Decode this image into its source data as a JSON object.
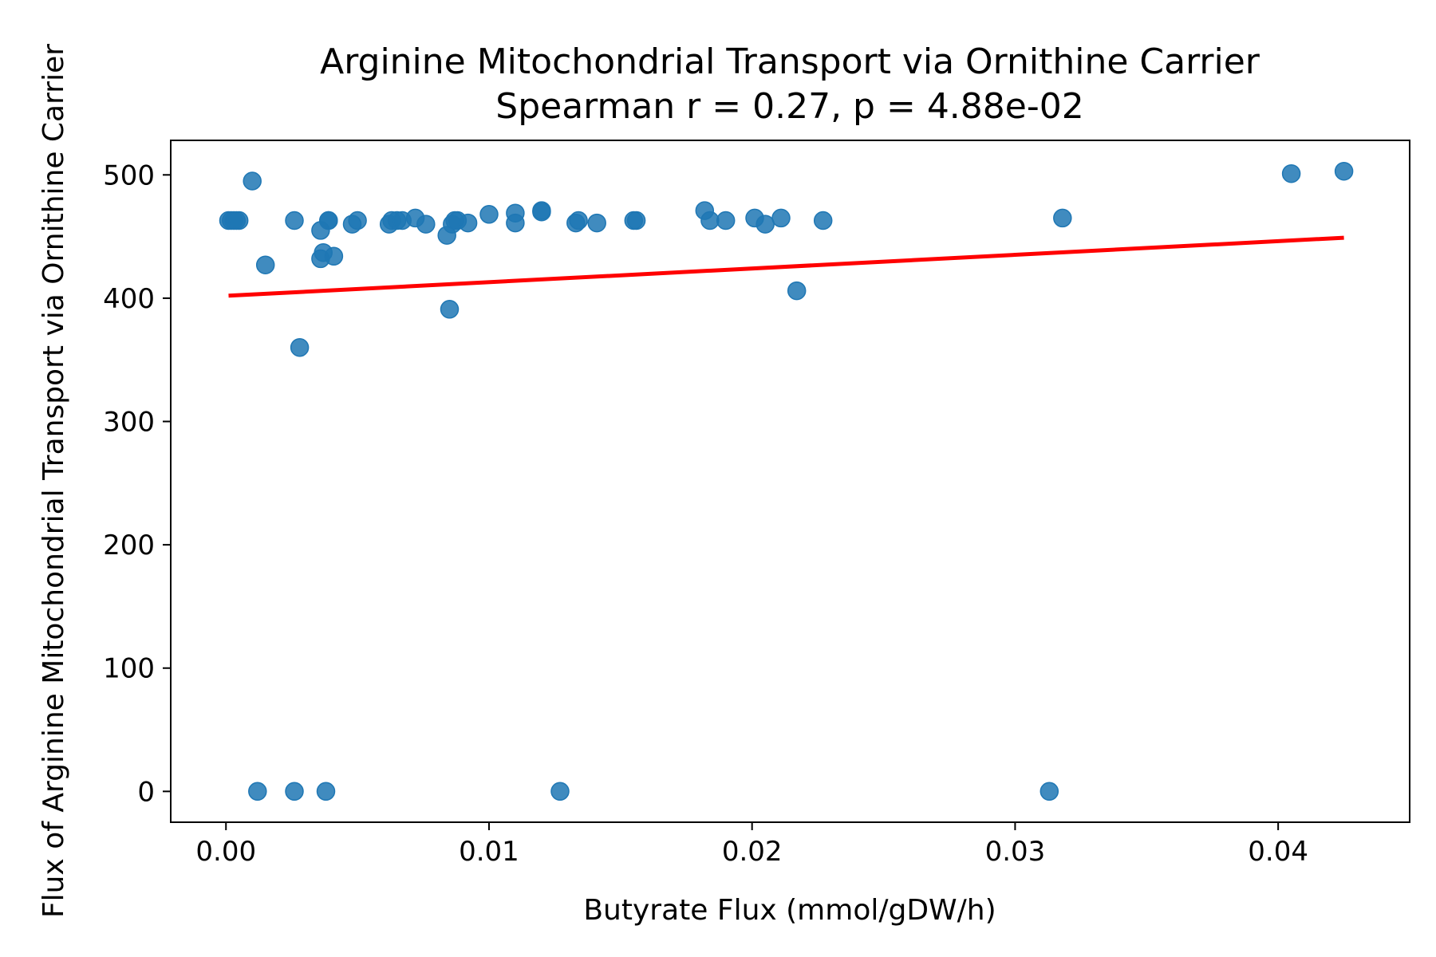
{
  "chart_data": {
    "type": "scatter",
    "title": "Arginine Mitochondrial Transport via Ornithine Carrier",
    "subtitle": "Spearman r = 0.27, p = 4.88e-02",
    "xlabel": "Butyrate Flux (mmol/gDW/h)",
    "ylabel": "Flux of Arginine Mitochondrial Transport via Ornithine Carrier",
    "xlim": [
      -0.0021,
      0.045
    ],
    "ylim": [
      -25,
      528
    ],
    "xticks": [
      0.0,
      0.01,
      0.02,
      0.03,
      0.04
    ],
    "xtick_labels": [
      "0.00",
      "0.01",
      "0.02",
      "0.03",
      "0.04"
    ],
    "yticks": [
      0,
      100,
      200,
      300,
      400,
      500
    ],
    "ytick_labels": [
      "0",
      "100",
      "200",
      "300",
      "400",
      "500"
    ],
    "grid": false,
    "colors": {
      "points": "#1f77b4",
      "trend": "#ff0000"
    },
    "series": [
      {
        "kind": "points",
        "x": [
          0.0001,
          0.0002,
          0.0003,
          0.0004,
          0.0005,
          0.001,
          0.0012,
          0.0015,
          0.0026,
          0.0026,
          0.0028,
          0.0036,
          0.0036,
          0.0037,
          0.0038,
          0.0039,
          0.0039,
          0.0041,
          0.0048,
          0.005,
          0.0062,
          0.0063,
          0.0065,
          0.0067,
          0.0072,
          0.0076,
          0.0084,
          0.0085,
          0.0086,
          0.0087,
          0.0088,
          0.0092,
          0.01,
          0.011,
          0.011,
          0.012,
          0.012,
          0.0127,
          0.0133,
          0.0134,
          0.0141,
          0.0155,
          0.0156,
          0.0182,
          0.0184,
          0.019,
          0.0201,
          0.0205,
          0.0211,
          0.0217,
          0.0227,
          0.0313,
          0.0318,
          0.0405,
          0.0425
        ],
        "y": [
          463,
          463,
          463,
          463,
          463,
          495,
          0,
          427,
          463,
          0,
          360,
          455,
          432,
          437,
          0,
          463,
          463,
          434,
          460,
          463,
          460,
          463,
          463,
          463,
          465,
          460,
          451,
          391,
          460,
          463,
          463,
          461,
          468,
          469,
          461,
          471,
          470,
          0,
          461,
          463,
          461,
          463,
          463,
          471,
          463,
          463,
          465,
          460,
          465,
          406,
          463,
          0,
          465,
          501,
          503
        ]
      },
      {
        "kind": "trend-line",
        "x": [
          0.0001,
          0.0425
        ],
        "y": [
          402,
          449
        ]
      }
    ]
  }
}
